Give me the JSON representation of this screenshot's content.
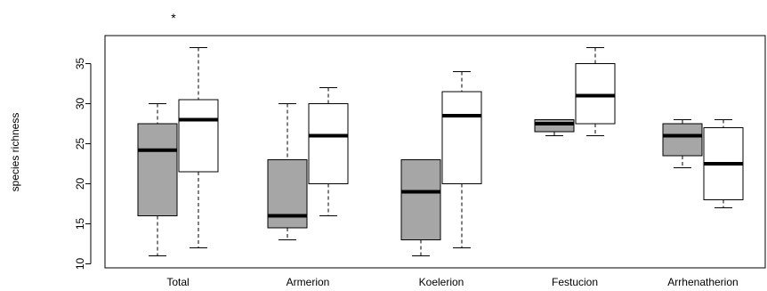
{
  "chart_data": {
    "type": "boxplot",
    "title": "",
    "xlabel": "",
    "ylabel": "species richness",
    "ylim": [
      9.5,
      38.5
    ],
    "yticks": [
      10,
      15,
      20,
      25,
      30,
      35
    ],
    "categories": [
      "Total",
      "Armerion",
      "Koelerion",
      "Festucion",
      "Arrhenatherion"
    ],
    "annotations": [
      {
        "category": "Total",
        "text": "*"
      }
    ],
    "grid": false,
    "legend": "none",
    "series": [
      {
        "color": "#a6a6a6",
        "boxes": [
          {
            "min": 11,
            "q1": 16,
            "median": 24.2,
            "q3": 27.5,
            "max": 30
          },
          {
            "min": 13,
            "q1": 14.5,
            "median": 16,
            "q3": 23,
            "max": 30
          },
          {
            "min": 11,
            "q1": 13,
            "median": 19,
            "q3": 23,
            "max": 23
          },
          {
            "min": 26,
            "q1": 26.5,
            "median": 27.5,
            "q3": 28,
            "max": 28
          },
          {
            "min": 22,
            "q1": 23.5,
            "median": 26,
            "q3": 27.5,
            "max": 28
          }
        ]
      },
      {
        "color": "#ffffff",
        "boxes": [
          {
            "min": 12,
            "q1": 21.5,
            "median": 28,
            "q3": 30.5,
            "max": 37
          },
          {
            "min": 16,
            "q1": 20,
            "median": 26,
            "q3": 30,
            "max": 32
          },
          {
            "min": 12,
            "q1": 20,
            "median": 28.5,
            "q3": 31.5,
            "max": 34
          },
          {
            "min": 26,
            "q1": 27.5,
            "median": 31,
            "q3": 35,
            "max": 37
          },
          {
            "min": 17,
            "q1": 18,
            "median": 22.5,
            "q3": 27,
            "max": 28
          }
        ]
      }
    ]
  }
}
